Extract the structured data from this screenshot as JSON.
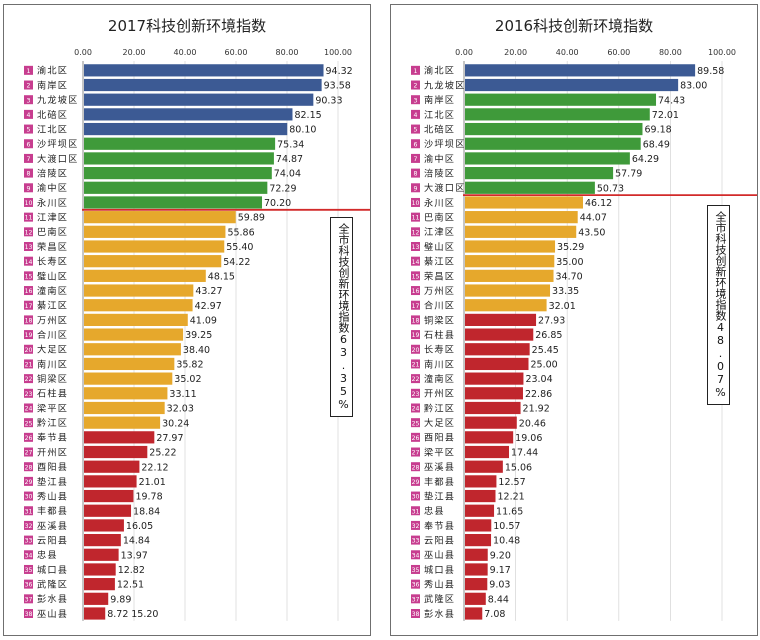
{
  "chart_data": [
    {
      "type": "bar",
      "title": "2017科技创新环境指数",
      "xlim": [
        0,
        100
      ],
      "xticks": [
        "0.00",
        "20.00",
        "40.00",
        "60.00",
        "80.00",
        "100.00"
      ],
      "legend": "none",
      "note": "全市科技创新环境指数63.35%",
      "rank_labels": [
        "1",
        "2",
        "3",
        "4",
        "5",
        "6",
        "7",
        "8",
        "9",
        "10",
        "11",
        "12",
        "13",
        "14",
        "15",
        "16",
        "17",
        "18",
        "19",
        "20",
        "21",
        "22",
        "23",
        "24",
        "25",
        "26",
        "27",
        "28",
        "29",
        "30",
        "31",
        "32",
        "33",
        "34",
        "35",
        "36",
        "37",
        "38"
      ],
      "categories": [
        "渝北区",
        "南岸区",
        "九龙坡区",
        "北碚区",
        "江北区",
        "沙坪坝区",
        "大渡口区",
        "涪陵区",
        "渝中区",
        "永川区",
        "江津区",
        "巴南区",
        "荣昌区",
        "长寿区",
        "璧山区",
        "潼南区",
        "綦江区",
        "万州区",
        "合川区",
        "大足区",
        "南川区",
        "铜梁区",
        "石柱县",
        "梁平区",
        "黔江区",
        "奉节县",
        "开州区",
        "酉阳县",
        "垫江县",
        "秀山县",
        "丰都县",
        "巫溪县",
        "云阳县",
        "忠县",
        "城口县",
        "武隆区",
        "彭水县",
        "巫山县"
      ],
      "values": [
        94.32,
        93.58,
        90.33,
        82.15,
        80.1,
        75.34,
        74.87,
        74.04,
        72.29,
        70.2,
        59.89,
        55.86,
        55.4,
        54.22,
        48.15,
        43.27,
        42.97,
        41.09,
        39.25,
        38.4,
        35.82,
        35.02,
        33.11,
        32.03,
        30.24,
        27.97,
        25.22,
        22.12,
        21.01,
        19.78,
        18.84,
        16.05,
        14.84,
        13.97,
        12.82,
        12.51,
        9.89,
        8.72
      ],
      "value_labels": [
        "94.32",
        "93.58",
        "90.33",
        "82.15",
        "80.10",
        "75.34",
        "74.87",
        "74.04",
        "72.29",
        "70.20",
        "59.89",
        "55.86",
        "55.40",
        "54.22",
        "48.15",
        "43.27",
        "42.97",
        "41.09",
        "39.25",
        "38.40",
        "35.82",
        "35.02",
        "33.11",
        "32.03",
        "30.24",
        "27.97",
        "25.22",
        "22.12",
        "21.01",
        "19.78",
        "18.84",
        "16.05",
        "14.84",
        "13.97",
        "12.82",
        "12.51",
        "9.89",
        "8.72"
      ],
      "extra_label": "15.20",
      "groups": [
        {
          "end": 5,
          "color": "#3c5a94"
        },
        {
          "end": 10,
          "color": "#3f9a3a"
        },
        {
          "end": 25,
          "color": "#e6a82c"
        },
        {
          "end": 38,
          "color": "#c0262d"
        }
      ],
      "average_line_after": 10
    },
    {
      "type": "bar",
      "title": "2016科技创新环境指数",
      "xlim": [
        0,
        100
      ],
      "xticks": [
        "0.00",
        "20.00",
        "40.00",
        "60.00",
        "80.00",
        "100.00"
      ],
      "legend": "none",
      "note": "全市科技创新环境指数48.07%",
      "rank_labels": [
        "1",
        "2",
        "3",
        "4",
        "5",
        "6",
        "7",
        "8",
        "9",
        "10",
        "11",
        "12",
        "13",
        "14",
        "15",
        "16",
        "17",
        "18",
        "19",
        "20",
        "21",
        "22",
        "23",
        "24",
        "25",
        "26",
        "27",
        "28",
        "29",
        "30",
        "31",
        "32",
        "33",
        "34",
        "35",
        "36",
        "37",
        "38"
      ],
      "categories": [
        "渝北区",
        "九龙坡区",
        "南岸区",
        "江北区",
        "北碚区",
        "沙坪坝区",
        "渝中区",
        "涪陵区",
        "大渡口区",
        "永川区",
        "巴南区",
        "江津区",
        "璧山区",
        "綦江区",
        "荣昌区",
        "万州区",
        "合川区",
        "铜梁区",
        "石柱县",
        "长寿区",
        "南川区",
        "潼南区",
        "开州区",
        "黔江区",
        "大足区",
        "酉阳县",
        "梁平区",
        "巫溪县",
        "丰都县",
        "垫江县",
        "忠县",
        "奉节县",
        "云阳县",
        "巫山县",
        "城口县",
        "秀山县",
        "武隆区",
        "彭水县"
      ],
      "values": [
        89.58,
        83.0,
        74.43,
        72.01,
        69.18,
        68.49,
        64.29,
        57.79,
        50.73,
        46.12,
        44.07,
        43.5,
        35.29,
        35.0,
        34.7,
        33.35,
        32.01,
        27.93,
        26.85,
        25.45,
        25.0,
        23.04,
        22.86,
        21.92,
        20.46,
        19.06,
        17.44,
        15.06,
        12.57,
        12.21,
        11.65,
        10.57,
        10.48,
        9.2,
        9.17,
        9.03,
        8.44,
        7.08
      ],
      "value_labels": [
        "89.58",
        "83.00",
        "74.43",
        "72.01",
        "69.18",
        "68.49",
        "64.29",
        "57.79",
        "50.73",
        "46.12",
        "44.07",
        "43.50",
        "35.29",
        "35.00",
        "34.70",
        "33.35",
        "32.01",
        "27.93",
        "26.85",
        "25.45",
        "25.00",
        "23.04",
        "22.86",
        "21.92",
        "20.46",
        "19.06",
        "17.44",
        "15.06",
        "12.57",
        "12.21",
        "11.65",
        "10.57",
        "10.48",
        "9.20",
        "9.17",
        "9.03",
        "8.44",
        "7.08"
      ],
      "extra_label": "",
      "groups": [
        {
          "end": 2,
          "color": "#3c5a94"
        },
        {
          "end": 9,
          "color": "#3f9a3a"
        },
        {
          "end": 17,
          "color": "#e6a82c"
        },
        {
          "end": 38,
          "color": "#c0262d"
        }
      ],
      "average_line_after": 9
    }
  ]
}
